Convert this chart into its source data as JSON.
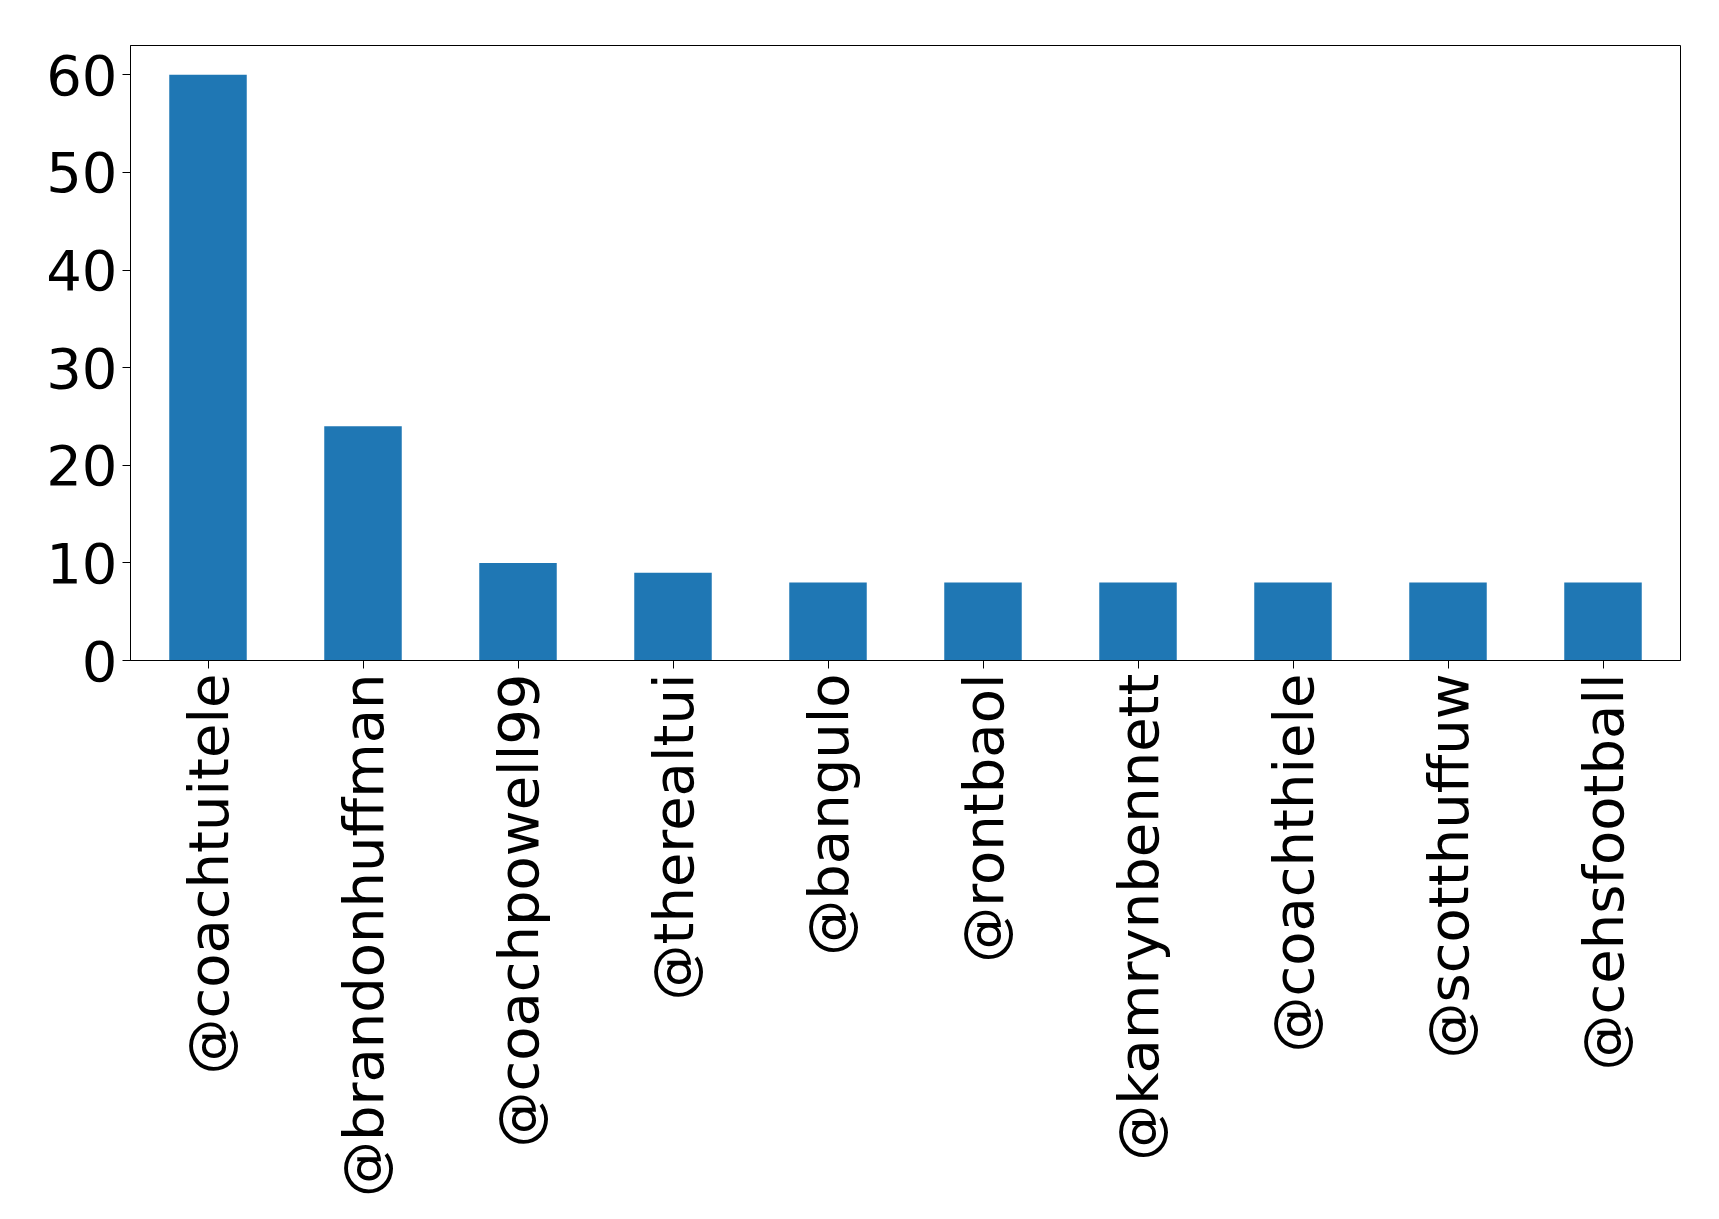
{
  "chart_data": {
    "type": "bar",
    "categories": [
      "@coachtuitele",
      "@brandonhuffman",
      "@coachpowell99",
      "@therealtui",
      "@bangulo",
      "@rontbaol",
      "@kamrynbennett",
      "@coachthiele",
      "@scotthuffuw",
      "@cehsfootball"
    ],
    "values": [
      60,
      24,
      10,
      9,
      8,
      8,
      8,
      8,
      8,
      8
    ],
    "color": "#1f77b4",
    "ylim": [
      0,
      63
    ],
    "yticks": [
      0,
      10,
      20,
      30,
      40,
      50,
      60
    ],
    "grid": false
  }
}
